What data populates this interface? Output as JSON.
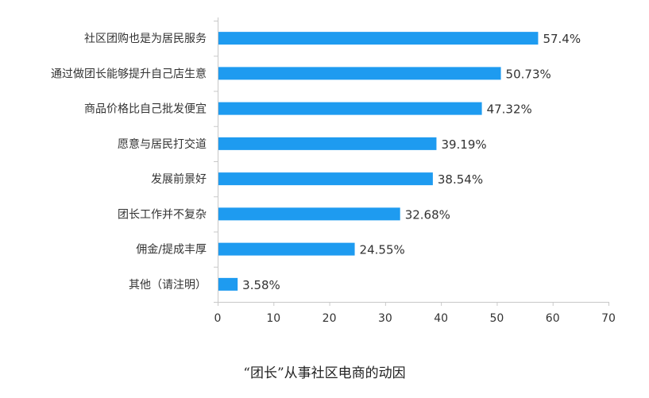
{
  "chart_data": {
    "type": "bar",
    "orientation": "horizontal",
    "title": "",
    "xlabel": "",
    "ylabel": "",
    "categories": [
      "社区团购也是为居民服务",
      "通过做团长能够提升自己店生意",
      "商品价格比自己批发便宜",
      "愿意与居民打交道",
      "发展前景好",
      "团长工作并不复杂",
      "佣金/提成丰厚",
      "其他（请注明）"
    ],
    "values": [
      57.4,
      50.73,
      47.32,
      39.19,
      38.54,
      32.68,
      24.55,
      3.58
    ],
    "value_labels": [
      "57.4%",
      "50.73%",
      "47.32%",
      "39.19%",
      "38.54%",
      "32.68%",
      "24.55%",
      "3.58%"
    ],
    "xlim": [
      0,
      70
    ],
    "xticks": [
      0,
      10,
      20,
      30,
      40,
      50,
      60,
      70
    ],
    "bar_color": "#1E9BF0",
    "grid": false,
    "legend": "none"
  },
  "caption": "“团长”从事社区电商的动因"
}
